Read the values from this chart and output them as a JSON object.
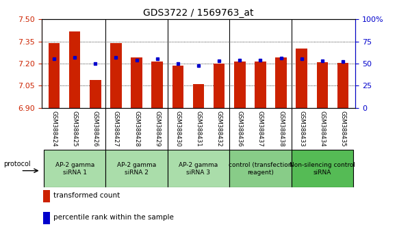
{
  "title": "GDS3722 / 1569763_at",
  "samples": [
    "GSM388424",
    "GSM388425",
    "GSM388426",
    "GSM388427",
    "GSM388428",
    "GSM388429",
    "GSM388430",
    "GSM388431",
    "GSM388432",
    "GSM388436",
    "GSM388437",
    "GSM388438",
    "GSM388433",
    "GSM388434",
    "GSM388435"
  ],
  "transformed_count": [
    7.34,
    7.42,
    7.09,
    7.34,
    7.24,
    7.215,
    7.185,
    7.06,
    7.2,
    7.215,
    7.215,
    7.24,
    7.3,
    7.21,
    7.205
  ],
  "percentile_rank": [
    55,
    57,
    50,
    57,
    54,
    55,
    50,
    48,
    53,
    54,
    54,
    56,
    55,
    53,
    52
  ],
  "ylim_left": [
    6.9,
    7.5
  ],
  "ylim_right": [
    0,
    100
  ],
  "yticks_left": [
    6.9,
    7.05,
    7.2,
    7.35,
    7.5
  ],
  "yticks_right": [
    0,
    25,
    50,
    75,
    100
  ],
  "bar_color": "#cc2200",
  "dot_color": "#0000cc",
  "grid_color": "#000000",
  "bar_width": 0.55,
  "groups": [
    {
      "label": "AP-2 gamma\nsiRNA 1",
      "indices": [
        0,
        1,
        2
      ],
      "bg": "#aaddaa"
    },
    {
      "label": "AP-2 gamma\nsiRNA 2",
      "indices": [
        3,
        4,
        5
      ],
      "bg": "#aaddaa"
    },
    {
      "label": "AP-2 gamma\nsiRNA 3",
      "indices": [
        6,
        7,
        8
      ],
      "bg": "#aaddaa"
    },
    {
      "label": "control (transfection\nreagent)",
      "indices": [
        9,
        10,
        11
      ],
      "bg": "#88cc88"
    },
    {
      "label": "Non-silencing control\nsiRNA",
      "indices": [
        12,
        13,
        14
      ],
      "bg": "#55bb55"
    }
  ],
  "protocol_label": "protocol",
  "legend_items": [
    {
      "color": "#cc2200",
      "label": "transformed count"
    },
    {
      "color": "#0000cc",
      "label": "percentile rank within the sample"
    }
  ],
  "tick_label_color_left": "#cc2200",
  "tick_label_color_right": "#0000cc",
  "sample_bg_color": "#cccccc",
  "right_100_label": "100%"
}
